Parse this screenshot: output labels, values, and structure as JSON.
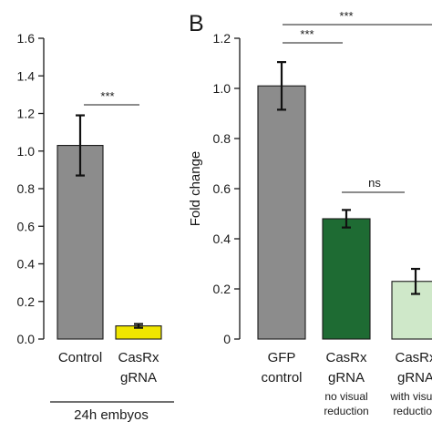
{
  "figure": {
    "background": "#ffffff"
  },
  "chart_data": [
    {
      "type": "bar",
      "panel_label": "",
      "title": "",
      "xlabel": "24h embyos",
      "ylabel": "",
      "ylim": [
        0,
        1.6
      ],
      "yticks": [
        "0.0",
        "0.2",
        "0.4",
        "0.6",
        "0.8",
        "1.0",
        "1.2",
        "1.4",
        "1.6"
      ],
      "grid": false,
      "legend": "none",
      "categories": [
        {
          "lines": [
            "Control"
          ]
        },
        {
          "lines": [
            "CasRx",
            "gRNA"
          ]
        }
      ],
      "values": [
        1.03,
        0.07
      ],
      "errors": [
        0.16,
        0.01
      ],
      "colors": [
        "#8c8c8c",
        "#f0e600"
      ],
      "significance": [
        {
          "from": 0,
          "to": 1,
          "label": "***"
        }
      ]
    },
    {
      "type": "bar",
      "panel_label": "B",
      "title": "",
      "xlabel": "",
      "ylabel": "Fold change",
      "ylim": [
        0,
        1.2
      ],
      "yticks": [
        "0",
        "0.2",
        "0.4",
        "0.6",
        "0.8",
        "1.0",
        "1.2"
      ],
      "grid": false,
      "legend": "none",
      "categories": [
        {
          "lines": [
            "GFP",
            "control"
          ],
          "sub": []
        },
        {
          "lines": [
            "CasRx",
            "gRNA"
          ],
          "sub": [
            "no visual",
            "reduction"
          ]
        },
        {
          "lines": [
            "CasRx",
            "gRNA"
          ],
          "sub": [
            "with visual",
            "reduction"
          ]
        }
      ],
      "values": [
        1.01,
        0.48,
        0.23
      ],
      "errors": [
        0.095,
        0.035,
        0.05
      ],
      "colors": [
        "#8c8c8c",
        "#1e6b33",
        "#cfe8c9"
      ],
      "significance": [
        {
          "from": 0,
          "to": 1,
          "label": "***"
        },
        {
          "from": 0,
          "to": 2,
          "label": "***"
        },
        {
          "from": 1,
          "to": 2,
          "label": "ns"
        }
      ]
    }
  ]
}
